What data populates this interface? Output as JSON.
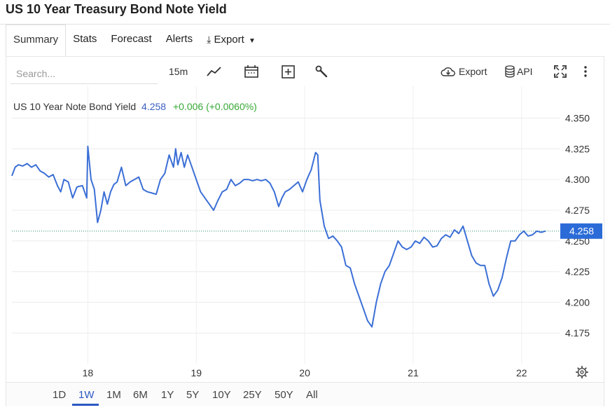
{
  "page": {
    "title": "US 10 Year Treasury Bond Note Yield"
  },
  "tabs": [
    {
      "label": "Summary",
      "active": true
    },
    {
      "label": "Stats"
    },
    {
      "label": "Forecast"
    },
    {
      "label": "Alerts"
    },
    {
      "label": "Export"
    }
  ],
  "toolbar": {
    "search_placeholder": "Search...",
    "interval": "15m",
    "export_label": "Export",
    "api_label": "API",
    "icons": [
      "line-chart-icon",
      "calendar-icon",
      "plus-box-icon",
      "wrench-icon",
      "cloud-download-icon",
      "database-icon",
      "fullscreen-icon",
      "more-vert-icon"
    ]
  },
  "legend": {
    "name": "US 10 Year Note Bond Yield",
    "value": "4.258",
    "change": "+0.006 (+0.0060%)",
    "value_color": "#3b5fc2",
    "change_color": "#37a837"
  },
  "ranges": [
    {
      "label": "1D"
    },
    {
      "label": "1W",
      "active": true
    },
    {
      "label": "1M"
    },
    {
      "label": "6M"
    },
    {
      "label": "1Y"
    },
    {
      "label": "5Y"
    },
    {
      "label": "10Y"
    },
    {
      "label": "25Y"
    },
    {
      "label": "50Y"
    },
    {
      "label": "All"
    }
  ],
  "chart_data": {
    "type": "line",
    "title": "US 10 Year Note Bond Yield",
    "xlabel": "",
    "ylabel": "",
    "line_color": "#3b6fd6",
    "grid": true,
    "ylim": [
      4.15,
      4.36
    ],
    "xlim": [
      17.3,
      22.35
    ],
    "y_ticks": [
      4.35,
      4.325,
      4.3,
      4.275,
      4.25,
      4.225,
      4.2,
      4.175
    ],
    "y_tick_labels": [
      "4.350",
      "4.325",
      "4.300",
      "4.275",
      "4.250",
      "4.225",
      "4.200",
      "4.175"
    ],
    "x_ticks": [
      18,
      19,
      20,
      21,
      22
    ],
    "x_tick_labels": [
      "18",
      "19",
      "20",
      "21",
      "22"
    ],
    "last_value": 4.258,
    "last_value_label": "4.258",
    "series": [
      {
        "x": [
          17.3,
          17.33,
          17.36,
          17.4,
          17.44,
          17.48,
          17.52,
          17.56,
          17.6,
          17.64,
          17.68,
          17.72,
          17.75,
          17.78,
          17.82,
          17.86,
          17.9,
          17.95,
          17.99,
          18.0,
          18.03,
          18.06,
          18.09,
          18.12,
          18.15,
          18.18,
          18.21,
          18.24,
          18.27,
          18.31,
          18.35,
          18.39,
          18.43,
          18.47,
          18.51,
          18.55,
          18.59,
          18.63,
          18.67,
          18.71,
          18.75,
          18.79,
          18.81,
          18.83,
          18.86,
          18.89,
          18.92,
          18.96,
          19.0,
          19.04,
          19.08,
          19.12,
          19.16,
          19.2,
          19.24,
          19.28,
          19.32,
          19.36,
          19.4,
          19.44,
          19.48,
          19.52,
          19.56,
          19.6,
          19.64,
          19.68,
          19.72,
          19.76,
          19.79,
          19.82,
          19.86,
          19.9,
          19.94,
          19.98,
          20.02,
          20.06,
          20.08,
          20.1,
          20.12,
          20.14,
          20.18,
          20.22,
          20.26,
          20.3,
          20.34,
          20.38,
          20.42,
          20.46,
          20.5,
          20.54,
          20.58,
          20.62,
          20.66,
          20.7,
          20.74,
          20.78,
          20.82,
          20.86,
          20.9,
          20.94,
          20.98,
          21.02,
          21.06,
          21.1,
          21.14,
          21.18,
          21.22,
          21.26,
          21.3,
          21.34,
          21.38,
          21.42,
          21.46,
          21.5,
          21.54,
          21.58,
          21.62,
          21.66,
          21.7,
          21.74,
          21.78,
          21.82,
          21.86,
          21.9,
          21.94,
          21.98,
          22.02,
          22.06,
          22.1,
          22.14,
          22.18,
          22.22
        ],
        "y": [
          4.303,
          4.31,
          4.312,
          4.311,
          4.313,
          4.31,
          4.312,
          4.307,
          4.305,
          4.302,
          4.304,
          4.295,
          4.29,
          4.3,
          4.298,
          4.285,
          4.294,
          4.295,
          4.285,
          4.327,
          4.3,
          4.292,
          4.265,
          4.275,
          4.29,
          4.28,
          4.29,
          4.296,
          4.298,
          4.31,
          4.295,
          4.298,
          4.3,
          4.302,
          4.292,
          4.29,
          4.289,
          4.288,
          4.3,
          4.305,
          4.32,
          4.31,
          4.325,
          4.312,
          4.322,
          4.31,
          4.32,
          4.31,
          4.3,
          4.29,
          4.285,
          4.28,
          4.275,
          4.283,
          4.29,
          4.292,
          4.3,
          4.295,
          4.297,
          4.3,
          4.3,
          4.299,
          4.3,
          4.299,
          4.3,
          4.297,
          4.29,
          4.278,
          4.285,
          4.29,
          4.292,
          4.295,
          4.298,
          4.29,
          4.3,
          4.308,
          4.315,
          4.322,
          4.32,
          4.283,
          4.262,
          4.252,
          4.254,
          4.25,
          4.245,
          4.23,
          4.228,
          4.215,
          4.205,
          4.195,
          4.185,
          4.18,
          4.2,
          4.215,
          4.225,
          4.23,
          4.24,
          4.25,
          4.245,
          4.243,
          4.245,
          4.25,
          4.248,
          4.253,
          4.25,
          4.245,
          4.246,
          4.252,
          4.255,
          4.253,
          4.259,
          4.256,
          4.262,
          4.25,
          4.238,
          4.232,
          4.23,
          4.23,
          4.215,
          4.205,
          4.21,
          4.22,
          4.236,
          4.25,
          4.25,
          4.255,
          4.258,
          4.254,
          4.255,
          4.258,
          4.257,
          4.258
        ]
      }
    ]
  }
}
